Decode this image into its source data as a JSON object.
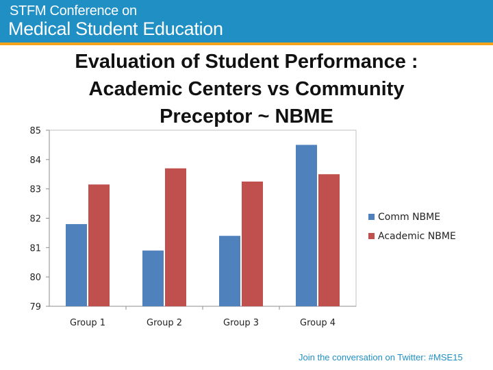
{
  "header": {
    "line1": "STFM Conference on",
    "line2": "Medical Student Education"
  },
  "footer": {
    "text": "Join the conversation on Twitter: #MSE15"
  },
  "colors": {
    "header_band": "#1f8fc4",
    "header_rule": "#f7a21b",
    "series_1": "#4f81bd",
    "series_2": "#c0504d"
  },
  "chart_data": {
    "type": "bar",
    "title": "Evaluation of Student Performance : Academic Centers vs Community Preceptor ~ NBME",
    "categories": [
      "Group 1",
      "Group 2",
      "Group 3",
      "Group 4"
    ],
    "series": [
      {
        "name": "Comm NBME",
        "values": [
          81.8,
          80.9,
          81.4,
          84.5
        ]
      },
      {
        "name": "Academic NBME",
        "values": [
          83.15,
          83.7,
          83.25,
          83.5
        ]
      }
    ],
    "ylim": [
      79,
      85
    ],
    "yticks": [
      79,
      80,
      81,
      82,
      83,
      84,
      85
    ],
    "grid": false,
    "legend": "right",
    "xlabel": "",
    "ylabel": ""
  }
}
